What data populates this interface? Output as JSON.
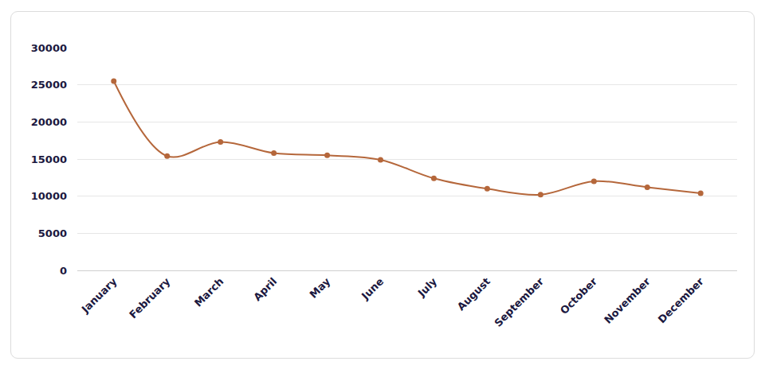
{
  "chart_data": {
    "type": "line",
    "categories": [
      "January",
      "February",
      "March",
      "April",
      "May",
      "June",
      "July",
      "August",
      "September",
      "October",
      "November",
      "December"
    ],
    "values": [
      25500,
      15400,
      17300,
      15800,
      15500,
      14900,
      12400,
      11000,
      10200,
      12000,
      11200,
      10400
    ],
    "color": "#b5673b",
    "marker": "circle",
    "line_style": "smooth",
    "ylim": [
      0,
      30000
    ],
    "yticks": [
      0,
      5000,
      10000,
      15000,
      20000,
      25000,
      30000
    ],
    "grid": true
  }
}
